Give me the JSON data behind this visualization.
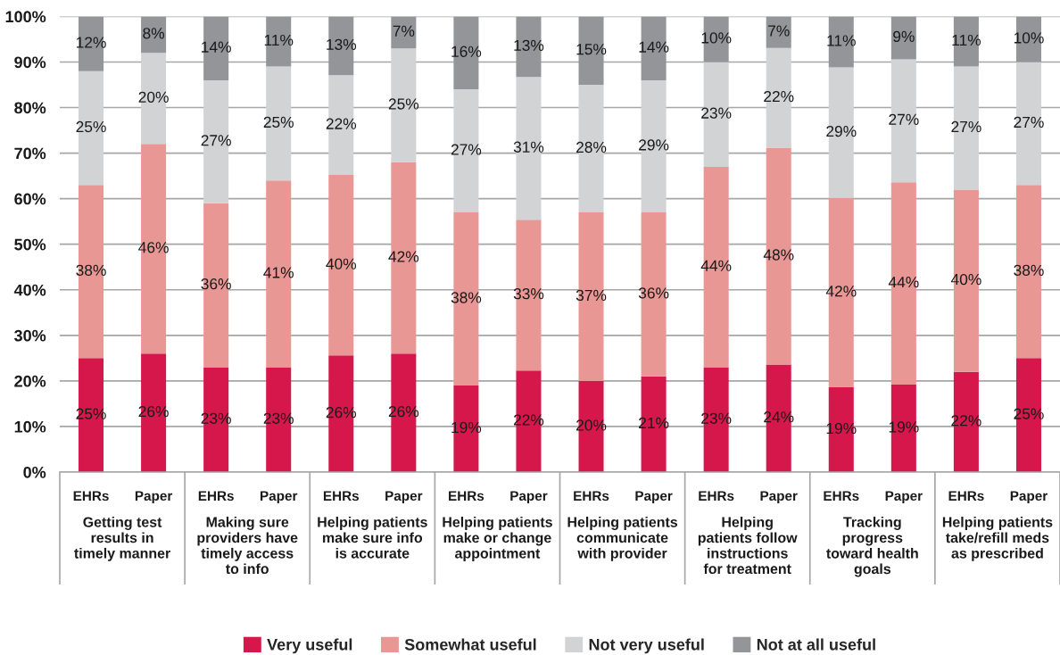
{
  "chart_data": {
    "type": "bar",
    "stacked": true,
    "categories": [
      "EHRs",
      "Paper",
      "EHRs",
      "Paper",
      "EHRs",
      "Paper",
      "EHRs",
      "Paper",
      "EHRs",
      "Paper",
      "EHRs",
      "Paper",
      "EHRs",
      "Paper",
      "EHRs",
      "Paper"
    ],
    "series": [
      {
        "name": "Very useful",
        "color": "#d6174b",
        "values": [
          25,
          26,
          23,
          23,
          25.6,
          26,
          19,
          22.3,
          20,
          21,
          23,
          23.6,
          18.6,
          19.2,
          22,
          25
        ],
        "value_labels": [
          "25%",
          "26%",
          "23%",
          "23%",
          "26%",
          "26%",
          "19%",
          "22%",
          "20%",
          "21%",
          "23%",
          "24%",
          "19%",
          "19%",
          "22%",
          "25%"
        ]
      },
      {
        "name": "Somewhat useful",
        "color": "#e99794",
        "values": [
          38,
          46,
          36,
          41,
          39.6,
          42,
          38,
          33.1,
          37,
          36,
          44,
          47.6,
          41.6,
          44.4,
          40,
          38
        ],
        "value_labels": [
          "38%",
          "46%",
          "36%",
          "41%",
          "40%",
          "42%",
          "38%",
          "33%",
          "37%",
          "36%",
          "44%",
          "48%",
          "42%",
          "44%",
          "40%",
          "38%"
        ]
      },
      {
        "name": "Not very useful",
        "color": "#d2d3d5",
        "values": [
          25,
          20,
          27,
          25,
          21.9,
          25,
          27,
          31.3,
          28,
          29,
          23,
          21.9,
          28.6,
          27.0,
          27,
          27
        ],
        "value_labels": [
          "25%",
          "20%",
          "27%",
          "25%",
          "22%",
          "25%",
          "27%",
          "31%",
          "28%",
          "29%",
          "23%",
          "22%",
          "29%",
          "27%",
          "27%",
          "27%"
        ]
      },
      {
        "name": "Not at all useful",
        "color": "#939598",
        "values": [
          12,
          8,
          14,
          11,
          12.9,
          7,
          16,
          13.3,
          15,
          14,
          10,
          6.9,
          11.2,
          9.4,
          11,
          10
        ],
        "value_labels": [
          "12%",
          "8%",
          "14%",
          "11%",
          "13%",
          "7%",
          "16%",
          "13%",
          "15%",
          "14%",
          "10%",
          "7%",
          "11%",
          "9%",
          "11%",
          "10%"
        ]
      }
    ],
    "ylim": [
      0,
      100
    ],
    "yticks": [
      {
        "value": 0,
        "label": "0%"
      },
      {
        "value": 10,
        "label": "10%"
      },
      {
        "value": 20,
        "label": "20%"
      },
      {
        "value": 30,
        "label": "30%"
      },
      {
        "value": 40,
        "label": "40%"
      },
      {
        "value": 50,
        "label": "50%"
      },
      {
        "value": 60,
        "label": "60%"
      },
      {
        "value": 70,
        "label": "70%"
      },
      {
        "value": 80,
        "label": "80%"
      },
      {
        "value": 90,
        "label": "90%"
      },
      {
        "value": 100,
        "label": "100%"
      }
    ],
    "grid": "y",
    "legend": "bottom",
    "annotations": [
      "Getting test\nresults in\ntimely manner",
      "Making sure\nproviders have\ntimely access\nto info",
      "Helping patients\nmake sure info\nis accurate",
      "Helping patients\nmake or change\nappointment",
      "Helping patients\ncommunicate\nwith provider",
      "Helping\npatients follow\ninstructions\nfor treatment",
      "Tracking\nprogress\ntoward health\ngoals",
      "Helping patients\ntake/refill meds\nas prescribed"
    ]
  }
}
